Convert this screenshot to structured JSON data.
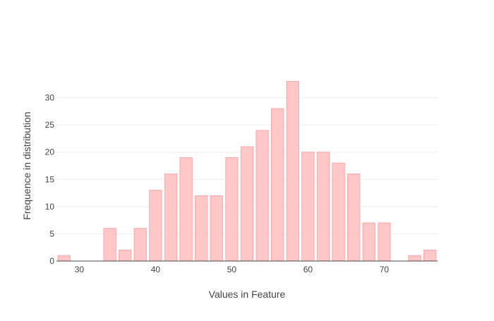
{
  "chart_data": {
    "type": "bar",
    "title": "",
    "xlabel": "Values in Feature",
    "ylabel": "Frequence in distribution",
    "x": [
      28,
      30,
      32,
      34,
      36,
      38,
      40,
      42,
      44,
      46,
      48,
      50,
      52,
      54,
      56,
      58,
      60,
      62,
      64,
      66,
      68,
      70,
      72,
      74,
      76
    ],
    "values": [
      1,
      0,
      0,
      6,
      2,
      6,
      13,
      16,
      19,
      12,
      12,
      19,
      21,
      24,
      28,
      33,
      20,
      20,
      18,
      16,
      7,
      7,
      0,
      1,
      2
    ],
    "bin_width": 2,
    "xlim": [
      27,
      77
    ],
    "ylim": [
      0,
      35
    ],
    "xticks": [
      30,
      40,
      50,
      60,
      70
    ],
    "yticks": [
      0,
      5,
      10,
      15,
      20,
      25,
      30
    ],
    "grid": true,
    "legend": "none",
    "colors": {
      "bar_fill": "#ffc7c8",
      "bar_stroke": "#ffa5a8",
      "grid": "#eeeeee",
      "axis_line": "#444444",
      "text": "#444444"
    }
  }
}
